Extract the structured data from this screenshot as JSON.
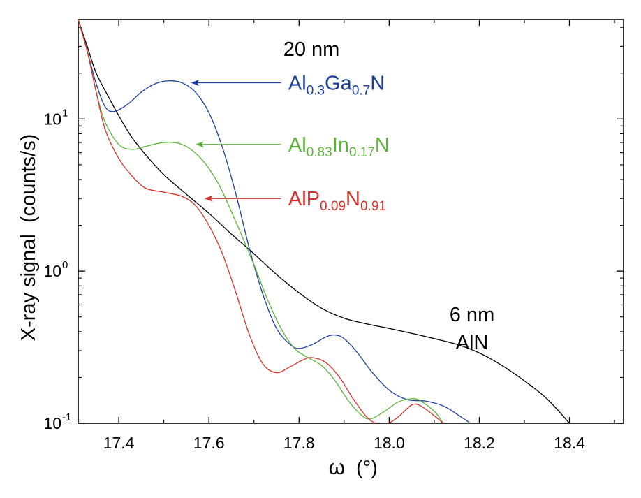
{
  "chart_data": {
    "type": "line",
    "xlabel_symbol": "ω",
    "xlabel_unit": "(°)",
    "ylabel": "X-ray signal  (counts/s)",
    "yscale": "log",
    "xlim": [
      17.31,
      18.52
    ],
    "ylim": [
      0.1,
      45
    ],
    "x_ticks": [
      "17.4",
      "17.6",
      "17.8",
      "18.0",
      "18.2",
      "18.4"
    ],
    "x_tick_values": [
      17.4,
      17.6,
      17.8,
      18.0,
      18.2,
      18.4
    ],
    "y_ticks": [
      {
        "value": 0.1,
        "base": "10",
        "exp": "-1"
      },
      {
        "value": 1,
        "base": "10",
        "exp": "0"
      },
      {
        "value": 10,
        "base": "10",
        "exp": "1"
      }
    ],
    "grid": false,
    "annotations": {
      "top": "20 nm",
      "bottom_line1": "6 nm",
      "bottom_line2": "AlN"
    },
    "series": [
      {
        "name": "AlN",
        "label_parts": [],
        "color": "#000000",
        "points": [
          [
            17.31,
            45
          ],
          [
            17.33,
            30
          ],
          [
            17.35,
            20
          ],
          [
            17.38,
            13.5
          ],
          [
            17.4,
            10.5
          ],
          [
            17.43,
            7.5
          ],
          [
            17.46,
            5.8
          ],
          [
            17.5,
            4.3
          ],
          [
            17.55,
            3.2
          ],
          [
            17.6,
            2.4
          ],
          [
            17.65,
            1.75
          ],
          [
            17.7,
            1.3
          ],
          [
            17.75,
            0.95
          ],
          [
            17.8,
            0.72
          ],
          [
            17.85,
            0.57
          ],
          [
            17.9,
            0.49
          ],
          [
            17.95,
            0.45
          ],
          [
            18.0,
            0.42
          ],
          [
            18.05,
            0.39
          ],
          [
            18.1,
            0.36
          ],
          [
            18.15,
            0.33
          ],
          [
            18.2,
            0.29
          ],
          [
            18.25,
            0.24
          ],
          [
            18.3,
            0.19
          ],
          [
            18.35,
            0.145
          ],
          [
            18.4,
            0.1
          ]
        ]
      },
      {
        "name": "Al0.3Ga0.7N",
        "label_parts": [
          [
            "Al",
            ""
          ],
          [
            "0.3",
            "sub"
          ],
          [
            "Ga",
            ""
          ],
          [
            "0.7",
            "sub"
          ],
          [
            "N",
            ""
          ]
        ],
        "color": "#1f3f9f",
        "points": [
          [
            17.31,
            45
          ],
          [
            17.33,
            28
          ],
          [
            17.35,
            17
          ],
          [
            17.37,
            12
          ],
          [
            17.39,
            11.2
          ],
          [
            17.42,
            12.5
          ],
          [
            17.45,
            15
          ],
          [
            17.48,
            17
          ],
          [
            17.51,
            17.8
          ],
          [
            17.54,
            17.3
          ],
          [
            17.57,
            15
          ],
          [
            17.6,
            11
          ],
          [
            17.63,
            6.5
          ],
          [
            17.66,
            3.2
          ],
          [
            17.69,
            1.4
          ],
          [
            17.72,
            0.7
          ],
          [
            17.75,
            0.42
          ],
          [
            17.78,
            0.33
          ],
          [
            17.8,
            0.31
          ],
          [
            17.83,
            0.33
          ],
          [
            17.86,
            0.37
          ],
          [
            17.88,
            0.38
          ],
          [
            17.9,
            0.36
          ],
          [
            17.93,
            0.29
          ],
          [
            17.96,
            0.22
          ],
          [
            18.0,
            0.165
          ],
          [
            18.04,
            0.143
          ],
          [
            18.08,
            0.14
          ],
          [
            18.12,
            0.13
          ],
          [
            18.15,
            0.115
          ],
          [
            18.18,
            0.1
          ]
        ]
      },
      {
        "name": "Al0.83In0.17N",
        "label_parts": [
          [
            "Al",
            ""
          ],
          [
            "0.83",
            "sub"
          ],
          [
            "In",
            ""
          ],
          [
            "0.17",
            "sub"
          ],
          [
            "N",
            ""
          ]
        ],
        "color": "#5cb33a",
        "points": [
          [
            17.31,
            45
          ],
          [
            17.33,
            28
          ],
          [
            17.35,
            15
          ],
          [
            17.37,
            9.5
          ],
          [
            17.4,
            6.8
          ],
          [
            17.43,
            6.3
          ],
          [
            17.46,
            6.6
          ],
          [
            17.5,
            7.0
          ],
          [
            17.54,
            6.8
          ],
          [
            17.58,
            5.6
          ],
          [
            17.62,
            3.8
          ],
          [
            17.66,
            2.1
          ],
          [
            17.7,
            1.1
          ],
          [
            17.73,
            0.65
          ],
          [
            17.76,
            0.42
          ],
          [
            17.79,
            0.31
          ],
          [
            17.82,
            0.27
          ],
          [
            17.85,
            0.24
          ],
          [
            17.88,
            0.19
          ],
          [
            17.91,
            0.14
          ],
          [
            17.94,
            0.112
          ],
          [
            17.96,
            0.107
          ],
          [
            17.99,
            0.12
          ],
          [
            18.02,
            0.138
          ],
          [
            18.05,
            0.145
          ],
          [
            18.07,
            0.14
          ],
          [
            18.1,
            0.12
          ],
          [
            18.12,
            0.1
          ]
        ]
      },
      {
        "name": "AlP0.09N0.91",
        "label_parts": [
          [
            "AlP",
            ""
          ],
          [
            "0.09",
            "sub"
          ],
          [
            "N",
            ""
          ],
          [
            "0.91",
            "sub"
          ]
        ],
        "color": "#d6302b",
        "points": [
          [
            17.31,
            45
          ],
          [
            17.33,
            28
          ],
          [
            17.35,
            15
          ],
          [
            17.37,
            8.5
          ],
          [
            17.4,
            5.5
          ],
          [
            17.43,
            4.2
          ],
          [
            17.46,
            3.5
          ],
          [
            17.5,
            3.3
          ],
          [
            17.54,
            3.1
          ],
          [
            17.57,
            2.7
          ],
          [
            17.6,
            2.0
          ],
          [
            17.63,
            1.3
          ],
          [
            17.66,
            0.72
          ],
          [
            17.69,
            0.38
          ],
          [
            17.72,
            0.245
          ],
          [
            17.75,
            0.215
          ],
          [
            17.78,
            0.235
          ],
          [
            17.81,
            0.262
          ],
          [
            17.83,
            0.27
          ],
          [
            17.86,
            0.25
          ],
          [
            17.89,
            0.2
          ],
          [
            17.92,
            0.145
          ],
          [
            17.95,
            0.11
          ],
          [
            17.97,
            0.1
          ],
          [
            17.99,
            0.097
          ],
          [
            18.02,
            0.11
          ],
          [
            18.05,
            0.132
          ],
          [
            18.07,
            0.13
          ],
          [
            18.1,
            0.112
          ],
          [
            18.12,
            0.1
          ]
        ]
      }
    ],
    "arrows": [
      {
        "series": 1,
        "from": [
          17.76,
          17.3
        ],
        "to": [
          17.56,
          17.3
        ],
        "label_x": 17.77
      },
      {
        "series": 2,
        "from": [
          17.76,
          6.8
        ],
        "to": [
          17.57,
          6.8
        ],
        "label_x": 17.77
      },
      {
        "series": 3,
        "from": [
          17.76,
          3.0
        ],
        "to": [
          17.59,
          3.0
        ],
        "label_x": 17.77
      }
    ]
  }
}
